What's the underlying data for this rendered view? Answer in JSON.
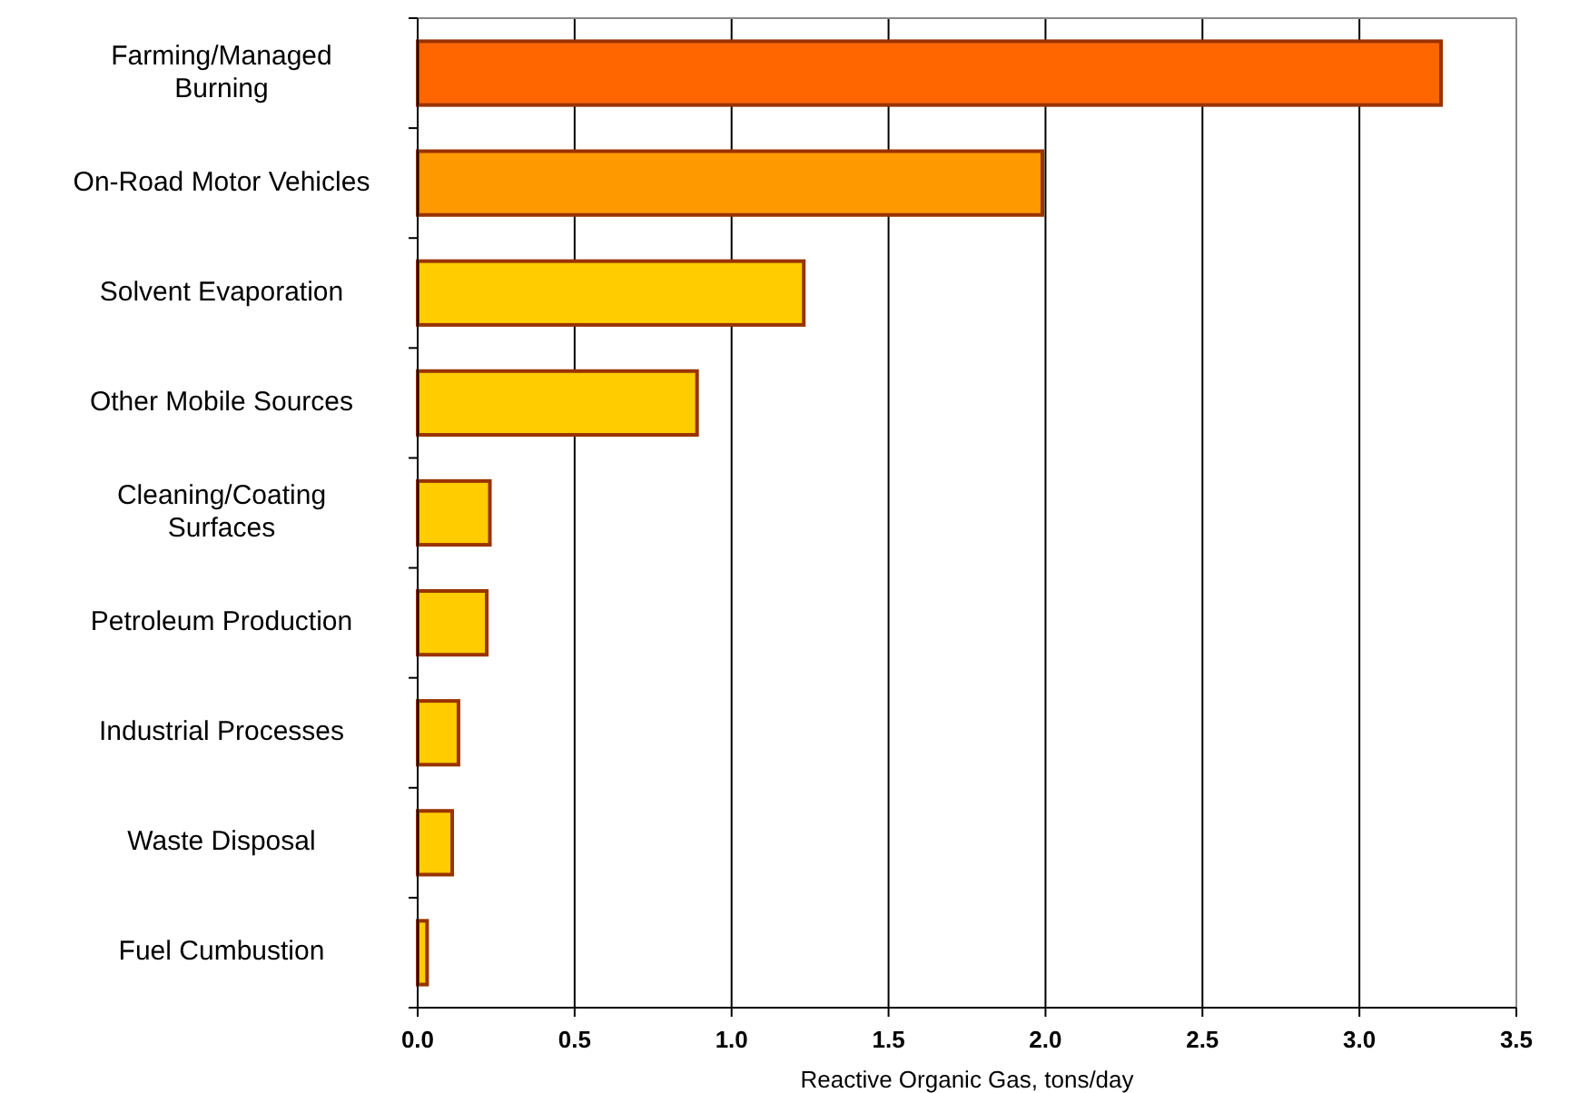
{
  "chart_data": {
    "type": "bar",
    "orientation": "horizontal",
    "xlabel": "Reactive Organic Gas, tons/day",
    "categories": [
      "Farming/Managed Burning",
      "On-Road Motor Vehicles",
      "Solvent Evaporation",
      "Other Mobile Sources",
      "Cleaning/Coating Surfaces",
      "Petroleum Production",
      "Industrial Processes",
      "Waste Disposal",
      "Fuel Cumbustion"
    ],
    "values": [
      3.26,
      1.99,
      1.23,
      0.89,
      0.23,
      0.22,
      0.13,
      0.11,
      0.03
    ],
    "colors": [
      "#ff6600",
      "#ff9900",
      "#ffcc00",
      "#ffcc00",
      "#ffcc00",
      "#ffcc00",
      "#ffcc00",
      "#ffcc00",
      "#ffcc00"
    ],
    "xlim": [
      0,
      3.5
    ],
    "xticks": [
      {
        "value": 0,
        "label": "0.0"
      },
      {
        "value": 0.5,
        "label": "0.5"
      },
      {
        "value": 1,
        "label": "1.0"
      },
      {
        "value": 1.5,
        "label": "1.5"
      },
      {
        "value": 2,
        "label": "2.0"
      },
      {
        "value": 2.5,
        "label": "2.5"
      },
      {
        "value": 3,
        "label": "3.0"
      },
      {
        "value": 3.5,
        "label": "3.5"
      }
    ],
    "grid": "x"
  }
}
